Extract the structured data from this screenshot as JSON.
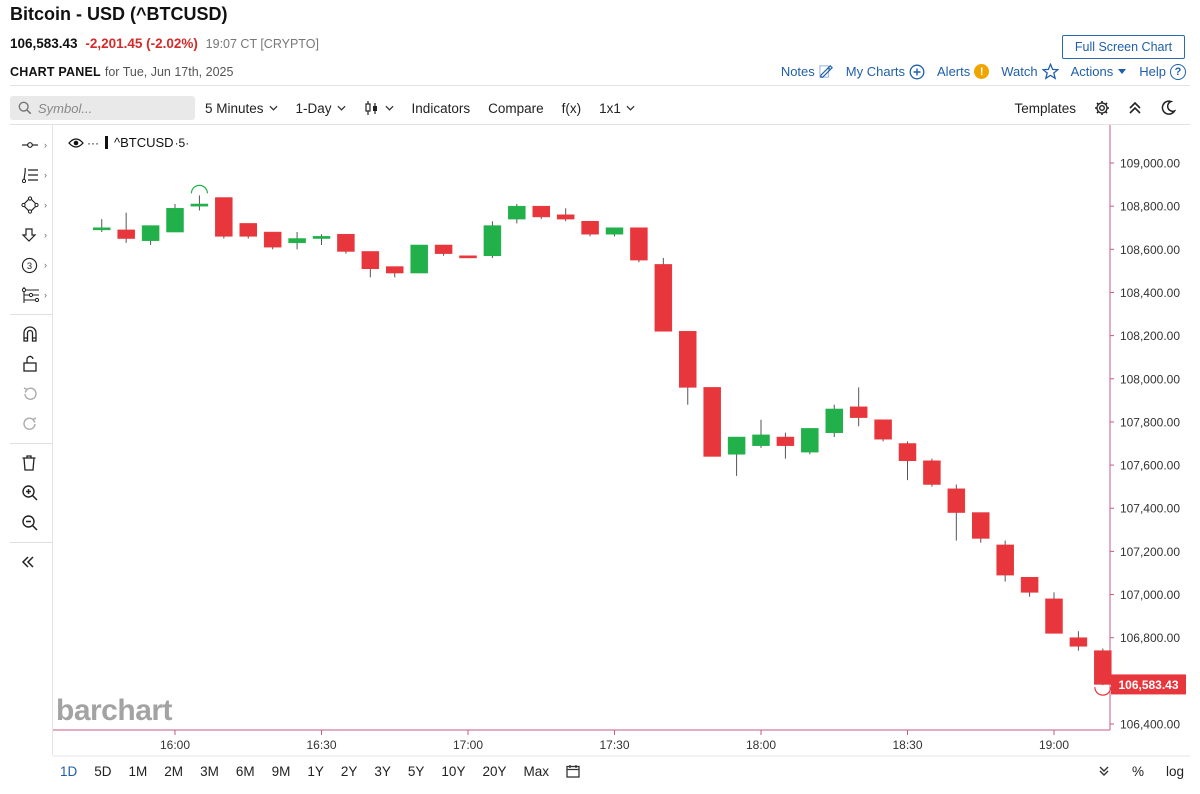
{
  "header": {
    "title": "Bitcoin - USD (^BTCUSD)",
    "last_price": "106,583.43",
    "change": "-2,201.45 (-2.02%)",
    "time_meta": "19:07 CT [CRYPTO]",
    "fullscreen_label": "Full Screen Chart",
    "panel_label": "CHART PANEL",
    "panel_date": "for Tue, Jun 17th, 2025"
  },
  "top_links": {
    "notes": "Notes",
    "my_charts": "My Charts",
    "alerts": "Alerts",
    "alert_badge": "!",
    "watch": "Watch",
    "actions": "Actions",
    "help": "Help",
    "help_icon": "?"
  },
  "toolbar": {
    "symbol_placeholder": "Symbol...",
    "interval": "5 Minutes",
    "range": "1-Day",
    "indicators": "Indicators",
    "compare": "Compare",
    "fx": "f(x)",
    "layout": "1x1",
    "templates": "Templates"
  },
  "left_tools": [
    "crosshair-tool-icon",
    "fibonacci-tool-icon",
    "shape-tool-icon",
    "arrow-tool-icon",
    "numbered-marker-icon",
    "pattern-tool-icon",
    "magnet-icon",
    "unlock-icon",
    "undo-icon",
    "redo-icon",
    "trash-icon",
    "zoom-in-icon",
    "zoom-out-icon",
    "collapse-icon"
  ],
  "legend": {
    "symbol": "^BTCUSD",
    "interval_tag": "·5·"
  },
  "watermark": "barchart",
  "colors": {
    "up": "#22b04b",
    "down": "#e8373c",
    "accent": "#1f5fa8",
    "axis_border": "#c75a87",
    "last_price_bg": "#e8373c"
  },
  "chart_data": {
    "type": "candlestick",
    "interval_minutes": 5,
    "ylim": [
      106350,
      109150
    ],
    "y_ticks": [
      "106,400.00",
      "106,600.00",
      "106,800.00",
      "107,000.00",
      "107,200.00",
      "107,400.00",
      "107,600.00",
      "107,800.00",
      "108,000.00",
      "108,200.00",
      "108,400.00",
      "108,600.00",
      "108,800.00",
      "109,000.00"
    ],
    "y_tick_values": [
      106400,
      106600,
      106800,
      107000,
      107200,
      107400,
      107600,
      107800,
      108000,
      108200,
      108400,
      108600,
      108800,
      109000
    ],
    "x_ticks": [
      "16:00",
      "16:30",
      "17:00",
      "17:30",
      "18:00",
      "18:30",
      "19:00"
    ],
    "x_tick_times": [
      "16:00",
      "16:30",
      "17:00",
      "17:30",
      "18:00",
      "18:30",
      "19:00"
    ],
    "last_price_label": "106,583.43",
    "last_price": 106583.43,
    "candles": [
      {
        "t": "15:45",
        "o": 108690,
        "h": 108740,
        "l": 108680,
        "c": 108700
      },
      {
        "t": "15:50",
        "o": 108690,
        "h": 108770,
        "l": 108630,
        "c": 108650
      },
      {
        "t": "15:55",
        "o": 108640,
        "h": 108710,
        "l": 108620,
        "c": 108710
      },
      {
        "t": "16:00",
        "o": 108680,
        "h": 108810,
        "l": 108680,
        "c": 108790
      },
      {
        "t": "16:05",
        "o": 108800,
        "h": 108850,
        "l": 108780,
        "c": 108810
      },
      {
        "t": "16:10",
        "o": 108840,
        "h": 108840,
        "l": 108650,
        "c": 108660
      },
      {
        "t": "16:15",
        "o": 108720,
        "h": 108720,
        "l": 108650,
        "c": 108660
      },
      {
        "t": "16:20",
        "o": 108680,
        "h": 108680,
        "l": 108600,
        "c": 108610
      },
      {
        "t": "16:25",
        "o": 108630,
        "h": 108680,
        "l": 108600,
        "c": 108650
      },
      {
        "t": "16:30",
        "o": 108650,
        "h": 108670,
        "l": 108620,
        "c": 108660
      },
      {
        "t": "16:35",
        "o": 108670,
        "h": 108670,
        "l": 108580,
        "c": 108590
      },
      {
        "t": "16:40",
        "o": 108590,
        "h": 108590,
        "l": 108470,
        "c": 108510
      },
      {
        "t": "16:45",
        "o": 108520,
        "h": 108520,
        "l": 108470,
        "c": 108490
      },
      {
        "t": "16:50",
        "o": 108490,
        "h": 108620,
        "l": 108490,
        "c": 108620
      },
      {
        "t": "16:55",
        "o": 108620,
        "h": 108620,
        "l": 108570,
        "c": 108580
      },
      {
        "t": "17:00",
        "o": 108570,
        "h": 108570,
        "l": 108560,
        "c": 108560
      },
      {
        "t": "17:05",
        "o": 108570,
        "h": 108730,
        "l": 108560,
        "c": 108710
      },
      {
        "t": "17:10",
        "o": 108740,
        "h": 108810,
        "l": 108720,
        "c": 108800
      },
      {
        "t": "17:15",
        "o": 108800,
        "h": 108800,
        "l": 108740,
        "c": 108750
      },
      {
        "t": "17:20",
        "o": 108760,
        "h": 108790,
        "l": 108730,
        "c": 108740
      },
      {
        "t": "17:25",
        "o": 108730,
        "h": 108730,
        "l": 108660,
        "c": 108670
      },
      {
        "t": "17:30",
        "o": 108670,
        "h": 108700,
        "l": 108660,
        "c": 108700
      },
      {
        "t": "17:35",
        "o": 108700,
        "h": 108700,
        "l": 108540,
        "c": 108550
      },
      {
        "t": "17:40",
        "o": 108530,
        "h": 108560,
        "l": 108220,
        "c": 108220
      },
      {
        "t": "17:45",
        "o": 108220,
        "h": 108220,
        "l": 107880,
        "c": 107960
      },
      {
        "t": "17:50",
        "o": 107960,
        "h": 107960,
        "l": 107640,
        "c": 107640
      },
      {
        "t": "17:55",
        "o": 107650,
        "h": 107730,
        "l": 107550,
        "c": 107730
      },
      {
        "t": "18:00",
        "o": 107690,
        "h": 107810,
        "l": 107680,
        "c": 107740
      },
      {
        "t": "18:05",
        "o": 107730,
        "h": 107750,
        "l": 107630,
        "c": 107690
      },
      {
        "t": "18:10",
        "o": 107660,
        "h": 107770,
        "l": 107650,
        "c": 107770
      },
      {
        "t": "18:15",
        "o": 107750,
        "h": 107880,
        "l": 107730,
        "c": 107860
      },
      {
        "t": "18:20",
        "o": 107870,
        "h": 107960,
        "l": 107780,
        "c": 107820
      },
      {
        "t": "18:25",
        "o": 107810,
        "h": 107810,
        "l": 107710,
        "c": 107720
      },
      {
        "t": "18:30",
        "o": 107700,
        "h": 107710,
        "l": 107530,
        "c": 107620
      },
      {
        "t": "18:35",
        "o": 107620,
        "h": 107630,
        "l": 107500,
        "c": 107510
      },
      {
        "t": "18:40",
        "o": 107490,
        "h": 107510,
        "l": 107250,
        "c": 107380
      },
      {
        "t": "18:45",
        "o": 107380,
        "h": 107380,
        "l": 107240,
        "c": 107260
      },
      {
        "t": "18:50",
        "o": 107230,
        "h": 107250,
        "l": 107060,
        "c": 107090
      },
      {
        "t": "18:55",
        "o": 107080,
        "h": 107080,
        "l": 106990,
        "c": 107010
      },
      {
        "t": "19:00",
        "o": 106980,
        "h": 107010,
        "l": 106820,
        "c": 106820
      },
      {
        "t": "19:05",
        "o": 106800,
        "h": 106830,
        "l": 106740,
        "c": 106760
      },
      {
        "t": "19:10",
        "o": 106740,
        "h": 106750,
        "l": 106580,
        "c": 106583.43
      }
    ]
  },
  "bottom_bar": {
    "periods": [
      "1D",
      "5D",
      "1M",
      "2M",
      "3M",
      "6M",
      "9M",
      "1Y",
      "2Y",
      "3Y",
      "5Y",
      "10Y",
      "20Y",
      "Max"
    ],
    "active": "1D",
    "percent_label": "%",
    "log_label": "log"
  }
}
